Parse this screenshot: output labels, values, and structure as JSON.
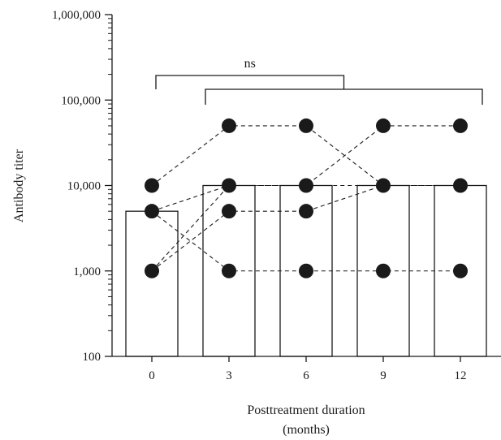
{
  "chart_data": {
    "type": "bar",
    "title": "",
    "ylabel": "Antibody titer",
    "xlabel_lines": [
      "Posttreatment duration",
      "(months)"
    ],
    "y_scale": "log",
    "ylim": [
      100,
      1000000
    ],
    "y_ticks": [
      100,
      1000,
      10000,
      100000,
      1000000
    ],
    "y_tick_labels": [
      "100",
      "1,000",
      "10,000",
      "100,000",
      "1,000,000"
    ],
    "categories": [
      "0",
      "3",
      "6",
      "9",
      "12"
    ],
    "bar_values": [
      5000,
      10000,
      10000,
      10000,
      10000
    ],
    "subjects": [
      {
        "values": [
          10000,
          50000,
          50000,
          10000,
          10000
        ]
      },
      {
        "values": [
          5000,
          10000,
          10000,
          50000,
          50000
        ]
      },
      {
        "values": [
          5000,
          1000,
          1000,
          1000,
          1000
        ]
      },
      {
        "values": [
          1000,
          5000,
          5000,
          10000,
          10000
        ]
      },
      {
        "values": [
          1000,
          10000,
          10000,
          10000,
          10000
        ]
      }
    ],
    "significance": {
      "label": "ns",
      "from": "0",
      "to": [
        "3",
        "6",
        "9",
        "12"
      ]
    },
    "colors": {
      "bar_fill": "#ffffff",
      "bar_stroke": "#1a1a1a",
      "point": "#1a1a1a",
      "line": "#1a1a1a"
    }
  }
}
